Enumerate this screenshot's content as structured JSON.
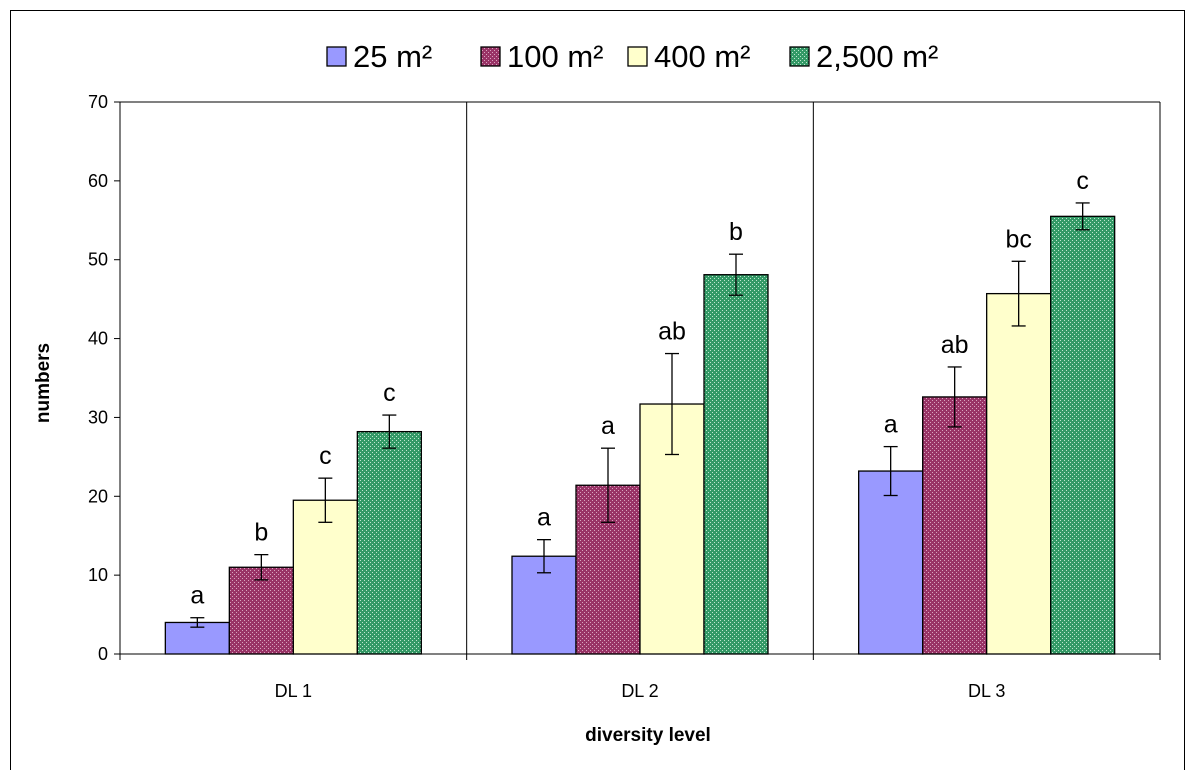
{
  "chart_data": {
    "type": "bar",
    "title": "",
    "xlabel": "diversity level",
    "ylabel": "numbers",
    "categories": [
      "DL 1",
      "DL 2",
      "DL 3"
    ],
    "ylim": [
      0,
      70
    ],
    "yticks": [
      "0",
      "10",
      "20",
      "30",
      "40",
      "50",
      "60",
      "70"
    ],
    "grid": "vertical separators between categories",
    "legend_position": "top",
    "series": [
      {
        "name": "25 m²",
        "color": "#9999ff",
        "pattern": "solid",
        "values": [
          4.0,
          12.4,
          23.2
        ],
        "error": [
          0.6,
          2.1,
          3.1
        ],
        "letters": [
          "a",
          "a",
          "a"
        ]
      },
      {
        "name": "100 m²",
        "color": "#993366",
        "pattern": "dotted",
        "values": [
          11.0,
          21.4,
          32.6
        ],
        "error": [
          1.6,
          4.7,
          3.8
        ],
        "letters": [
          "b",
          "a",
          "ab"
        ]
      },
      {
        "name": "400 m²",
        "color": "#ffffcc",
        "pattern": "solid",
        "values": [
          19.5,
          31.7,
          45.7
        ],
        "error": [
          2.8,
          6.4,
          4.1
        ],
        "letters": [
          "c",
          "ab",
          "bc"
        ]
      },
      {
        "name": "2,500 m²",
        "color": "#339966",
        "pattern": "dotted",
        "values": [
          28.2,
          48.1,
          55.5
        ],
        "error": [
          2.1,
          2.6,
          1.7
        ],
        "letters": [
          "c",
          "b",
          "c"
        ]
      }
    ]
  }
}
